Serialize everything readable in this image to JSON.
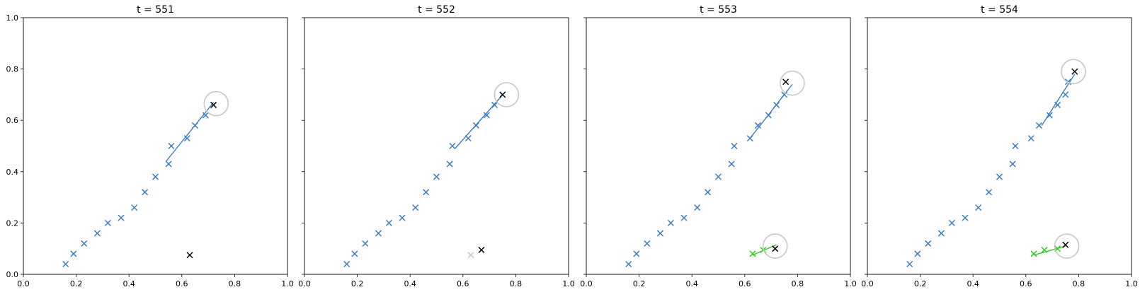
{
  "chart_data": [
    {
      "type": "scatter",
      "title": "t = 551",
      "xlim": [
        0,
        1
      ],
      "ylim": [
        0,
        1
      ],
      "x_ticks": [
        "0.0",
        "0.2",
        "0.4",
        "0.6",
        "0.8",
        "1.0"
      ],
      "y_ticks": [
        "0.0",
        "0.2",
        "0.4",
        "0.6",
        "0.8",
        "1.0"
      ],
      "show_y_ticklabels": true,
      "series": [
        {
          "color": "#3a7fc8",
          "kind": "marker",
          "points": [
            [
              0.16,
              0.04
            ],
            [
              0.19,
              0.08
            ],
            [
              0.23,
              0.12
            ],
            [
              0.28,
              0.16
            ],
            [
              0.32,
              0.2
            ],
            [
              0.37,
              0.22
            ],
            [
              0.42,
              0.26
            ],
            [
              0.46,
              0.32
            ],
            [
              0.5,
              0.38
            ],
            [
              0.55,
              0.43
            ],
            [
              0.56,
              0.5
            ],
            [
              0.62,
              0.53
            ],
            [
              0.65,
              0.58
            ],
            [
              0.69,
              0.62
            ]
          ]
        },
        {
          "color": "#3a7fc8",
          "kind": "line",
          "points": [
            [
              0.54,
              0.44
            ],
            [
              0.72,
              0.67
            ]
          ]
        },
        {
          "color": "#000000",
          "kind": "marker",
          "points": [
            [
              0.72,
              0.66
            ],
            [
              0.63,
              0.075
            ]
          ]
        },
        {
          "color": "#c8c8c8",
          "kind": "circle",
          "points": [
            [
              0.73,
              0.665
            ]
          ]
        }
      ]
    },
    {
      "type": "scatter",
      "title": "t = 552",
      "xlim": [
        0,
        1
      ],
      "ylim": [
        0,
        1
      ],
      "x_ticks": [
        "0.0",
        "0.2",
        "0.4",
        "0.6",
        "0.8",
        "1.0"
      ],
      "y_ticks": [
        "0.0",
        "0.2",
        "0.4",
        "0.6",
        "0.8",
        "1.0"
      ],
      "show_y_ticklabels": false,
      "series": [
        {
          "color": "#3a7fc8",
          "kind": "marker",
          "points": [
            [
              0.16,
              0.04
            ],
            [
              0.19,
              0.08
            ],
            [
              0.23,
              0.12
            ],
            [
              0.28,
              0.16
            ],
            [
              0.32,
              0.2
            ],
            [
              0.37,
              0.22
            ],
            [
              0.42,
              0.26
            ],
            [
              0.46,
              0.32
            ],
            [
              0.5,
              0.38
            ],
            [
              0.55,
              0.43
            ],
            [
              0.56,
              0.5
            ],
            [
              0.62,
              0.53
            ],
            [
              0.65,
              0.58
            ],
            [
              0.69,
              0.62
            ],
            [
              0.72,
              0.66
            ]
          ]
        },
        {
          "color": "#3a7fc8",
          "kind": "line",
          "points": [
            [
              0.57,
              0.49
            ],
            [
              0.76,
              0.71
            ]
          ]
        },
        {
          "color": "#000000",
          "kind": "marker",
          "points": [
            [
              0.75,
              0.7
            ],
            [
              0.67,
              0.095
            ]
          ]
        },
        {
          "color": "#c8c8c8",
          "kind": "marker",
          "points": [
            [
              0.63,
              0.075
            ]
          ]
        },
        {
          "color": "#c8c8c8",
          "kind": "circle",
          "points": [
            [
              0.765,
              0.7
            ]
          ]
        }
      ]
    },
    {
      "type": "scatter",
      "title": "t = 553",
      "xlim": [
        0,
        1
      ],
      "ylim": [
        0,
        1
      ],
      "x_ticks": [
        "0.0",
        "0.2",
        "0.4",
        "0.6",
        "0.8",
        "1.0"
      ],
      "y_ticks": [
        "0.0",
        "0.2",
        "0.4",
        "0.6",
        "0.8",
        "1.0"
      ],
      "show_y_ticklabels": false,
      "series": [
        {
          "color": "#3a7fc8",
          "kind": "marker",
          "points": [
            [
              0.16,
              0.04
            ],
            [
              0.19,
              0.08
            ],
            [
              0.23,
              0.12
            ],
            [
              0.28,
              0.16
            ],
            [
              0.32,
              0.2
            ],
            [
              0.37,
              0.22
            ],
            [
              0.42,
              0.26
            ],
            [
              0.46,
              0.32
            ],
            [
              0.5,
              0.38
            ],
            [
              0.55,
              0.43
            ],
            [
              0.56,
              0.5
            ],
            [
              0.62,
              0.53
            ],
            [
              0.65,
              0.58
            ],
            [
              0.69,
              0.62
            ],
            [
              0.72,
              0.66
            ],
            [
              0.75,
              0.7
            ]
          ]
        },
        {
          "color": "#3a7fc8",
          "kind": "line",
          "points": [
            [
              0.62,
              0.53
            ],
            [
              0.78,
              0.74
            ]
          ]
        },
        {
          "color": "#33cc22",
          "kind": "marker",
          "points": [
            [
              0.63,
              0.08
            ],
            [
              0.67,
              0.095
            ]
          ]
        },
        {
          "color": "#33cc22",
          "kind": "line",
          "points": [
            [
              0.63,
              0.075
            ],
            [
              0.72,
              0.115
            ]
          ]
        },
        {
          "color": "#000000",
          "kind": "marker",
          "points": [
            [
              0.755,
              0.75
            ],
            [
              0.715,
              0.1
            ]
          ]
        },
        {
          "color": "#c8c8c8",
          "kind": "circle",
          "points": [
            [
              0.78,
              0.745
            ],
            [
              0.715,
              0.11
            ]
          ]
        }
      ]
    },
    {
      "type": "scatter",
      "title": "t = 554",
      "xlim": [
        0,
        1
      ],
      "ylim": [
        0,
        1
      ],
      "x_ticks": [
        "0.0",
        "0.2",
        "0.4",
        "0.6",
        "0.8",
        "1.0"
      ],
      "y_ticks": [
        "0.0",
        "0.2",
        "0.4",
        "0.6",
        "0.8",
        "1.0"
      ],
      "show_y_ticklabels": false,
      "series": [
        {
          "color": "#3a7fc8",
          "kind": "marker",
          "points": [
            [
              0.16,
              0.04
            ],
            [
              0.19,
              0.08
            ],
            [
              0.23,
              0.12
            ],
            [
              0.28,
              0.16
            ],
            [
              0.32,
              0.2
            ],
            [
              0.37,
              0.22
            ],
            [
              0.42,
              0.26
            ],
            [
              0.46,
              0.32
            ],
            [
              0.5,
              0.38
            ],
            [
              0.55,
              0.43
            ],
            [
              0.56,
              0.5
            ],
            [
              0.62,
              0.53
            ],
            [
              0.65,
              0.58
            ],
            [
              0.69,
              0.62
            ],
            [
              0.72,
              0.66
            ],
            [
              0.75,
              0.7
            ],
            [
              0.76,
              0.75
            ]
          ]
        },
        {
          "color": "#3a7fc8",
          "kind": "line",
          "points": [
            [
              0.66,
              0.58
            ],
            [
              0.785,
              0.78
            ]
          ]
        },
        {
          "color": "#33cc22",
          "kind": "marker",
          "points": [
            [
              0.63,
              0.08
            ],
            [
              0.67,
              0.095
            ],
            [
              0.72,
              0.1
            ]
          ]
        },
        {
          "color": "#33cc22",
          "kind": "line",
          "points": [
            [
              0.63,
              0.075
            ],
            [
              0.75,
              0.11
            ]
          ]
        },
        {
          "color": "#000000",
          "kind": "marker",
          "points": [
            [
              0.785,
              0.79
            ],
            [
              0.75,
              0.115
            ]
          ]
        },
        {
          "color": "#c8c8c8",
          "kind": "circle",
          "points": [
            [
              0.78,
              0.79
            ],
            [
              0.755,
              0.11
            ]
          ]
        }
      ]
    }
  ]
}
